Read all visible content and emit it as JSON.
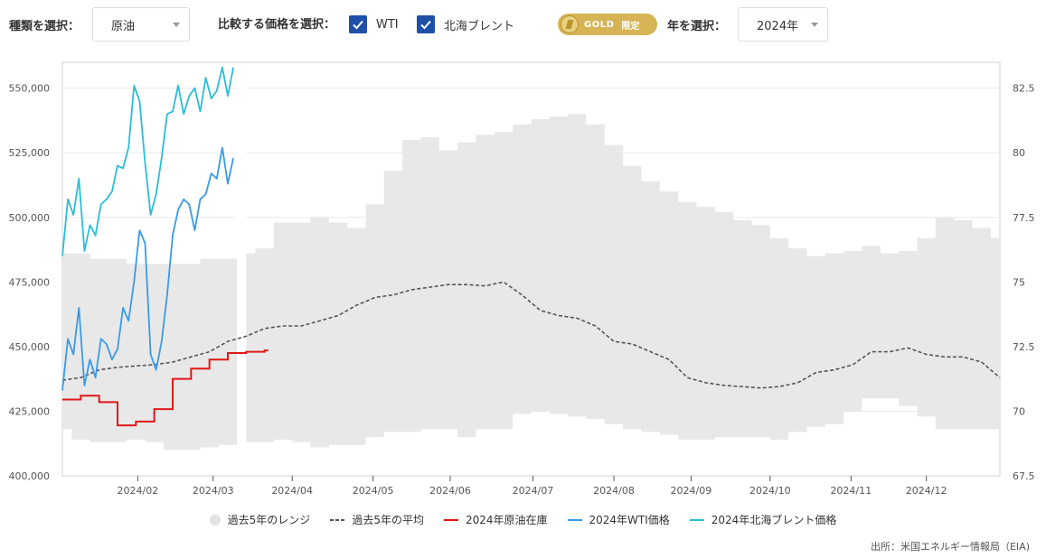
{
  "controls": {
    "type_label": "種類を選択：",
    "type_value": "原油",
    "compare_label": "比較する価格を選択：",
    "wti_label": "WTI",
    "brent_label": "北海ブレント",
    "gold_badge": "GOLD",
    "gold_limited": "限定",
    "year_label": "年を選択：",
    "year_value": "2024年"
  },
  "colors": {
    "range": "#e8e8e8",
    "avg": "#555555",
    "inventory": "#e01818",
    "wti": "#3a9ae6",
    "brent": "#2bbdd6",
    "checkbox": "#1f4fa8",
    "gold": "#d6b456"
  },
  "legend": {
    "range": "過去5年のレンジ",
    "avg": "過去5年の平均",
    "inventory": "2024年原油在庫",
    "wti": "2024年WTI価格",
    "brent": "2024年北海ブレント価格"
  },
  "source": "出所：米国エネルギー情報局（EIA)",
  "chart_data": {
    "type": "line",
    "left_axis": {
      "ylim": [
        400000,
        560000
      ],
      "ticks": [
        "400,000",
        "425,000",
        "450,000",
        "475,000",
        "500,000",
        "525,000",
        "550,000"
      ]
    },
    "right_axis": {
      "ylim": [
        67.5,
        83.5
      ],
      "ticks": [
        "67.5",
        "70",
        "72.5",
        "75",
        "77.5",
        "80",
        "82.5"
      ]
    },
    "x_ticks": [
      "2024/02",
      "2024/03",
      "2024/04",
      "2024/05",
      "2024/06",
      "2024/07",
      "2024/08",
      "2024/09",
      "2024/10",
      "2024/11",
      "2024/12"
    ],
    "x_tick_weeks": [
      4.1,
      8.2,
      12.5,
      16.9,
      21.1,
      25.6,
      30.0,
      34.2,
      38.5,
      42.9,
      47.0
    ],
    "range_weeks": [
      0,
      1,
      2,
      3,
      4,
      5,
      6,
      7,
      8,
      9,
      10,
      11,
      12,
      13,
      14,
      15,
      16,
      17,
      18,
      19,
      20,
      21,
      22,
      23,
      24,
      25,
      26,
      27,
      28,
      29,
      30,
      31,
      32,
      33,
      34,
      35,
      36,
      37,
      38,
      39,
      40,
      41,
      42,
      43,
      44,
      45,
      46,
      47,
      48,
      49,
      50,
      51
    ],
    "range_upper": [
      486000,
      486000,
      484000,
      484000,
      482000,
      482000,
      482000,
      482000,
      484000,
      484000,
      486000,
      488000,
      498000,
      498000,
      500000,
      498000,
      496000,
      505000,
      518000,
      530000,
      531000,
      526000,
      529000,
      532000,
      533000,
      536000,
      538000,
      539000,
      540000,
      536000,
      528000,
      520000,
      514000,
      510000,
      506000,
      504000,
      502000,
      499000,
      497000,
      492000,
      488000,
      485000,
      486000,
      487000,
      489000,
      486000,
      487000,
      492000,
      500000,
      499000,
      496000,
      492000
    ],
    "range_lower": [
      418000,
      414000,
      413000,
      413000,
      414000,
      413000,
      410000,
      410000,
      411000,
      412000,
      413000,
      413000,
      414000,
      413000,
      411000,
      412000,
      412000,
      415000,
      417000,
      417000,
      418000,
      418000,
      415000,
      418000,
      418000,
      424000,
      425000,
      424000,
      423000,
      422000,
      420000,
      418000,
      417000,
      416000,
      414000,
      414000,
      415000,
      415000,
      415000,
      414000,
      417000,
      419000,
      420000,
      425000,
      430000,
      430000,
      427000,
      423000,
      418000,
      418000,
      418000,
      418000
    ],
    "avg_weeks": [
      0,
      1,
      2,
      3,
      4,
      5,
      6,
      7,
      8,
      9,
      10,
      11,
      12,
      13,
      14,
      15,
      16,
      17,
      18,
      19,
      20,
      21,
      22,
      23,
      24,
      25,
      26,
      27,
      28,
      29,
      30,
      31,
      32,
      33,
      34,
      35,
      36,
      37,
      38,
      39,
      40,
      41,
      42,
      43,
      44,
      45,
      46,
      47,
      48,
      49,
      50,
      51
    ],
    "avg_values": [
      437000,
      438000,
      441000,
      442000,
      442500,
      443000,
      444000,
      446000,
      448000,
      452000,
      454000,
      457000,
      458000,
      458000,
      460000,
      462000,
      466000,
      469000,
      470000,
      472000,
      473000,
      474000,
      474000,
      473500,
      475000,
      470000,
      464000,
      462000,
      461000,
      458000,
      452000,
      451000,
      448000,
      445000,
      438000,
      436000,
      435000,
      434500,
      434000,
      434500,
      436000,
      440000,
      441000,
      443000,
      448000,
      448000,
      449500,
      447000,
      446000,
      446000,
      444000,
      438000
    ],
    "inventory_weeks": [
      0,
      1,
      2,
      3,
      4,
      5,
      6,
      7,
      8,
      9,
      10,
      11
    ],
    "inventory_values": [
      429500,
      431000,
      428500,
      419500,
      421000,
      425800,
      437500,
      441500,
      445000,
      447500,
      448000,
      448500
    ],
    "wti_x": [
      0.0,
      0.3,
      0.6,
      0.9,
      1.2,
      1.5,
      1.8,
      2.1,
      2.4,
      2.7,
      3.0,
      3.3,
      3.6,
      3.9,
      4.2,
      4.5,
      4.8,
      5.1,
      5.4,
      5.7,
      6.0,
      6.3,
      6.6,
      6.9,
      7.2,
      7.5,
      7.8,
      8.1,
      8.4,
      8.7,
      9.0,
      9.3
    ],
    "wti_y": [
      70.8,
      72.8,
      72.2,
      74.0,
      71.0,
      72.0,
      71.3,
      72.8,
      72.6,
      72.0,
      72.4,
      74.0,
      73.5,
      75.0,
      77.0,
      76.5,
      72.2,
      71.6,
      72.7,
      74.5,
      76.8,
      77.8,
      78.2,
      78.0,
      77.0,
      78.2,
      78.4,
      79.2,
      79.0,
      80.2,
      78.8,
      79.8
    ],
    "brent_x": [
      0.0,
      0.3,
      0.6,
      0.9,
      1.2,
      1.5,
      1.8,
      2.1,
      2.4,
      2.7,
      3.0,
      3.3,
      3.6,
      3.9,
      4.2,
      4.5,
      4.8,
      5.1,
      5.4,
      5.7,
      6.0,
      6.3,
      6.6,
      6.9,
      7.2,
      7.5,
      7.8,
      8.1,
      8.4,
      8.7,
      9.0,
      9.3
    ],
    "brent_y": [
      76.0,
      78.2,
      77.6,
      79.0,
      76.2,
      77.2,
      76.8,
      78.0,
      78.2,
      78.5,
      79.5,
      79.4,
      80.2,
      82.6,
      82.0,
      79.6,
      77.6,
      78.4,
      79.8,
      81.5,
      81.6,
      82.6,
      81.5,
      82.2,
      82.5,
      81.6,
      82.9,
      82.1,
      82.4,
      83.3,
      82.2,
      83.3
    ]
  }
}
